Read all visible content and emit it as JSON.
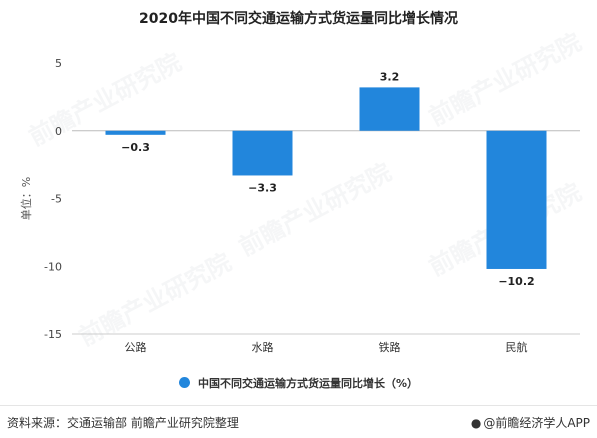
{
  "chart_data": {
    "type": "bar",
    "title": "2020年中国不同交通运输方式货运量同比增长情况",
    "ylabel": "单位：%",
    "categories": [
      "公路",
      "水路",
      "铁路",
      "民航"
    ],
    "series": [
      {
        "name": "中国不同交通运输方式货运量同比增长（%）",
        "values": [
          -0.3,
          -3.3,
          3.2,
          -10.2
        ]
      }
    ],
    "data_labels": [
      "−0.3",
      "−3.3",
      "3.2",
      "−10.2"
    ],
    "ylim": [
      -15,
      5
    ],
    "yticks": [
      5,
      0,
      -5,
      -10,
      -15
    ],
    "grid": false,
    "legend_position": "bottom",
    "bar_color": "#2286dc"
  },
  "footer": {
    "source": "资料来源：交通运输部 前瞻产业研究院整理",
    "brand": "@前瞻经济学人APP"
  },
  "watermark": "前瞻产业研究院"
}
